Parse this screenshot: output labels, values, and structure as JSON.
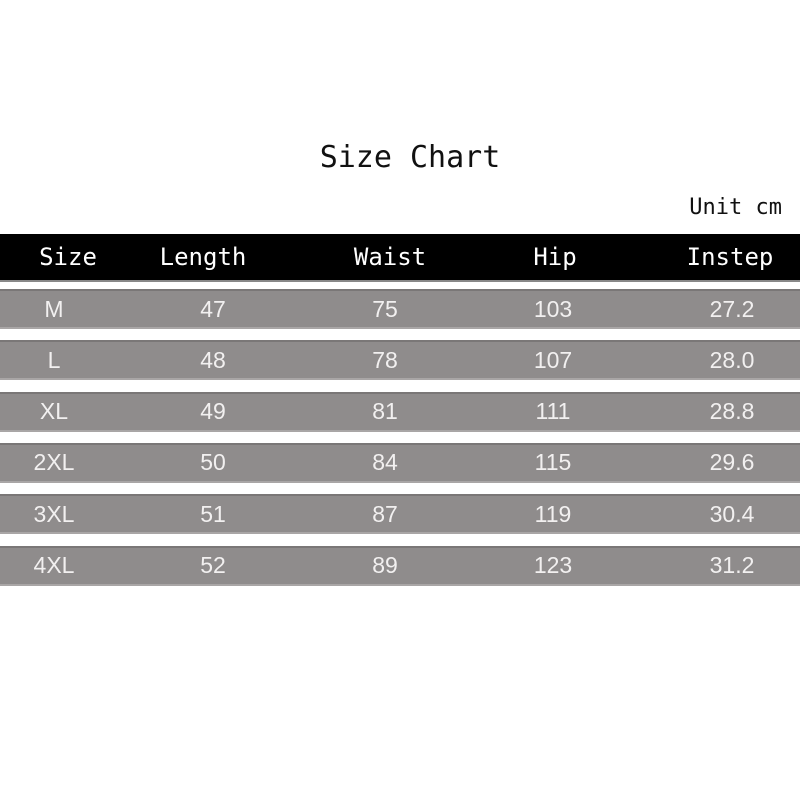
{
  "title": "Size Chart",
  "unit": "Unit cm",
  "columns": [
    "Size",
    "Length",
    "Waist",
    "Hip",
    "Instep"
  ],
  "rows": [
    [
      "M",
      "47",
      "75",
      "103",
      "27.2"
    ],
    [
      "L",
      "48",
      "78",
      "107",
      "28.0"
    ],
    [
      "XL",
      "49",
      "81",
      "111",
      "28.8"
    ],
    [
      "2XL",
      "50",
      "84",
      "115",
      "29.6"
    ],
    [
      "3XL",
      "51",
      "87",
      "119",
      "30.4"
    ],
    [
      "4XL",
      "52",
      "89",
      "123",
      "31.2"
    ]
  ],
  "colors": {
    "header_bg": "#000000",
    "row_bg": "#8f8c8c",
    "row_text": "#f2f0f0"
  }
}
